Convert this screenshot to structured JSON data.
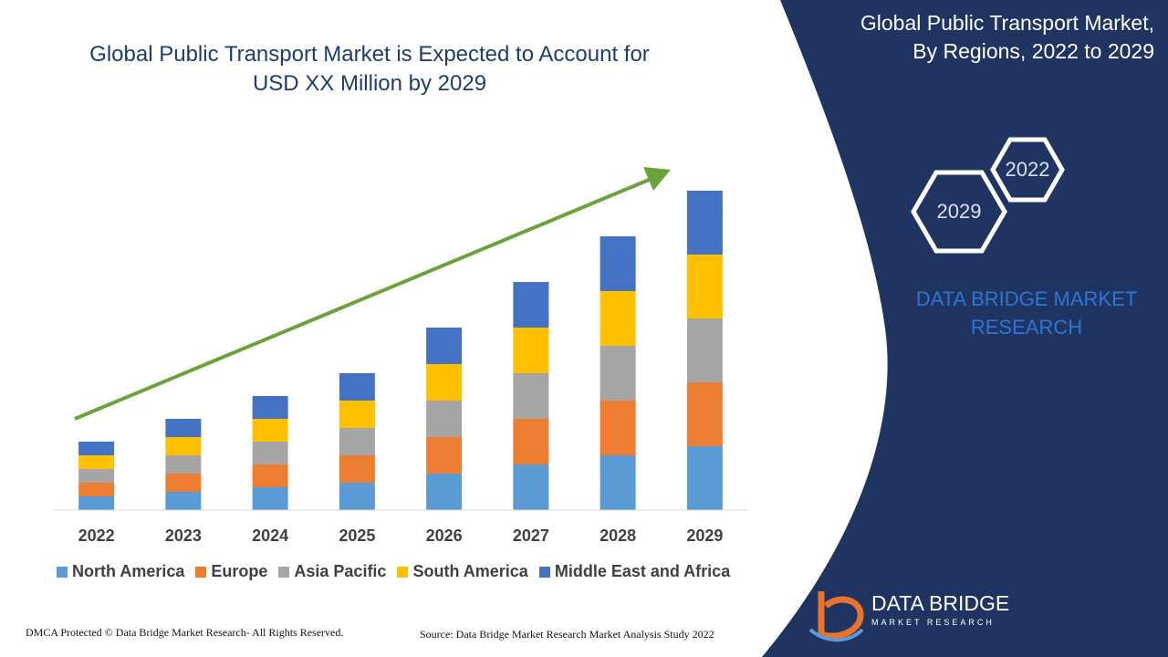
{
  "chart_title_line1": "Global Public Transport Market is Expected to Account for",
  "chart_title_line2": "USD XX Million by 2029",
  "side_panel": {
    "title_line1": "Global Public Transport Market,",
    "title_line2": "By Regions, 2022 to 2029",
    "hex_labels": [
      "2022",
      "2029"
    ],
    "brand_line1": "DATA BRIDGE MARKET",
    "brand_line2": "RESEARCH",
    "logo_name": "DATA BRIDGE",
    "logo_sub": "MARKET RESEARCH"
  },
  "footer": {
    "left": "DMCA Protected © Data Bridge Market Research- All Rights Reserved.",
    "right": "Source: Data Bridge Market Research Market Analysis Study 2022"
  },
  "colors": {
    "panel_navy": "#1f3461",
    "trend_arrow": "#6aa339",
    "title_text": "#1f3c6e",
    "brand_blue": "#2e75d6"
  },
  "chart_data": {
    "type": "bar",
    "stacked": true,
    "categories": [
      "2022",
      "2023",
      "2024",
      "2025",
      "2026",
      "2027",
      "2028",
      "2029"
    ],
    "series": [
      {
        "name": "North America",
        "color": "#5b9bd5",
        "values": [
          3,
          4,
          5,
          6,
          8,
          10,
          12,
          14
        ]
      },
      {
        "name": "Europe",
        "color": "#ed7d31",
        "values": [
          3,
          4,
          5,
          6,
          8,
          10,
          12,
          14
        ]
      },
      {
        "name": "Asia Pacific",
        "color": "#a5a5a5",
        "values": [
          3,
          4,
          5,
          6,
          8,
          10,
          12,
          14
        ]
      },
      {
        "name": "South America",
        "color": "#ffc000",
        "values": [
          3,
          4,
          5,
          6,
          8,
          10,
          12,
          14
        ]
      },
      {
        "name": "Middle East and Africa",
        "color": "#4472c4",
        "values": [
          3,
          4,
          5,
          6,
          8,
          10,
          12,
          14
        ]
      }
    ],
    "ylim": [
      0,
      75
    ],
    "y_axis_shown": false,
    "grid": false,
    "legend_position": "bottom",
    "trend_arrow": true,
    "xlabel": "",
    "ylabel": ""
  }
}
